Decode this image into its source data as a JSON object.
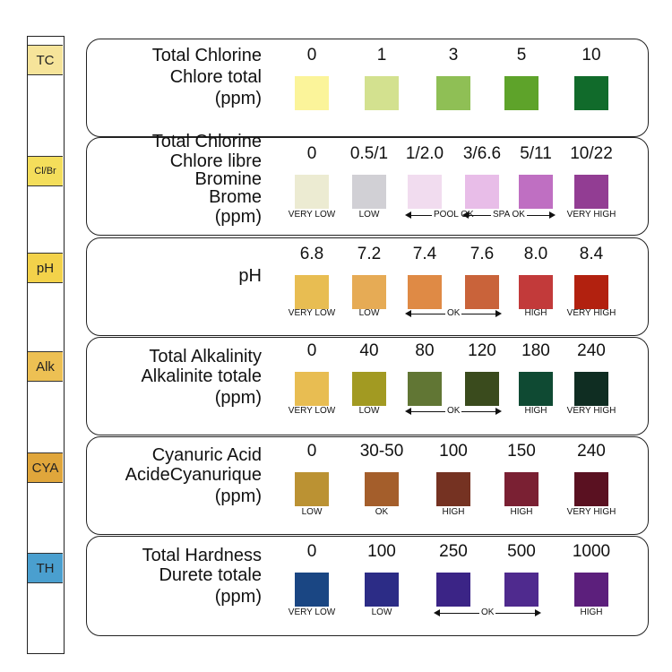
{
  "strip": {
    "pads": [
      {
        "label": "TC",
        "color": "#f6e49a"
      },
      {
        "label": "Cl/Br",
        "color": "#f4de5b"
      },
      {
        "label": "pH",
        "color": "#f3d24a"
      },
      {
        "label": "Alk",
        "color": "#edc053"
      },
      {
        "label": "CYA",
        "color": "#e0a63b"
      },
      {
        "label": "TH",
        "color": "#4a9fcf"
      }
    ]
  },
  "sections": [
    {
      "id": "tc",
      "title": [
        "Total Chlorine",
        "Chlore total",
        "(ppm)"
      ],
      "values": [
        "0",
        "1",
        "3",
        "5",
        "10"
      ],
      "colors": [
        "#fbf49a",
        "#d3e18f",
        "#8fbf55",
        "#5ea32a",
        "#116b2b"
      ],
      "labels": [
        "",
        "",
        "",
        "",
        ""
      ]
    },
    {
      "id": "clbr",
      "title": [
        "Total Chlorine",
        "Chlore libre",
        "Bromine",
        "Brome",
        "(ppm)"
      ],
      "values": [
        "0",
        "0.5/1",
        "1/2.0",
        "3/6.6",
        "5/11",
        "10/22"
      ],
      "colors": [
        "#ecebd2",
        "#d1d0d5",
        "#f1dcef",
        "#e8bde8",
        "#bf6fc2",
        "#923d93"
      ],
      "labels": [
        "VERY LOW",
        "LOW",
        "",
        "",
        "",
        "VERY HIGH"
      ],
      "ranges": [
        {
          "text": "POOL OK",
          "from": 2,
          "to": 3
        },
        {
          "text": "SPA OK",
          "from": 3,
          "to": 4
        }
      ]
    },
    {
      "id": "ph",
      "title": [
        "pH"
      ],
      "values": [
        "6.8",
        "7.2",
        "7.4",
        "7.6",
        "8.0",
        "8.4"
      ],
      "colors": [
        "#e8bd52",
        "#e6ab55",
        "#df8a45",
        "#c9633a",
        "#c23a3a",
        "#b2210f"
      ],
      "labels": [
        "VERY LOW",
        "LOW",
        "",
        "",
        "HIGH",
        "VERY HIGH"
      ],
      "ranges": [
        {
          "text": "OK",
          "from": 2,
          "to": 3
        }
      ]
    },
    {
      "id": "alk",
      "title": [
        "Total Alkalinity",
        "Alkalinite totale",
        "(ppm)"
      ],
      "values": [
        "0",
        "40",
        "80",
        "120",
        "180",
        "240"
      ],
      "colors": [
        "#e8bd52",
        "#a29a22",
        "#617634",
        "#3a4b1d",
        "#0f4a33",
        "#0f2d22"
      ],
      "labels": [
        "VERY LOW",
        "LOW",
        "",
        "",
        "HIGH",
        "VERY HIGH"
      ],
      "ranges": [
        {
          "text": "OK",
          "from": 2,
          "to": 3
        }
      ]
    },
    {
      "id": "cya",
      "title": [
        "Cyanuric Acid",
        "AcideCyanurique",
        "(ppm)"
      ],
      "values": [
        "0",
        "30-50",
        "100",
        "150",
        "240"
      ],
      "colors": [
        "#bb9233",
        "#a45e2b",
        "#753222",
        "#7a2033",
        "#5a1121"
      ],
      "labels": [
        "LOW",
        "OK",
        "HIGH",
        "HIGH",
        "VERY HIGH"
      ]
    },
    {
      "id": "th",
      "title": [
        "Total Hardness",
        "Durete totale",
        "(ppm)"
      ],
      "values": [
        "0",
        "100",
        "250",
        "500",
        "1000"
      ],
      "colors": [
        "#1a4683",
        "#2c2c86",
        "#3b2486",
        "#4f2a8e",
        "#5c1f7c"
      ],
      "labels": [
        "VERY LOW",
        "LOW",
        "",
        "",
        "HIGH"
      ],
      "ranges": [
        {
          "text": "OK",
          "from": 2,
          "to": 3
        }
      ]
    }
  ]
}
